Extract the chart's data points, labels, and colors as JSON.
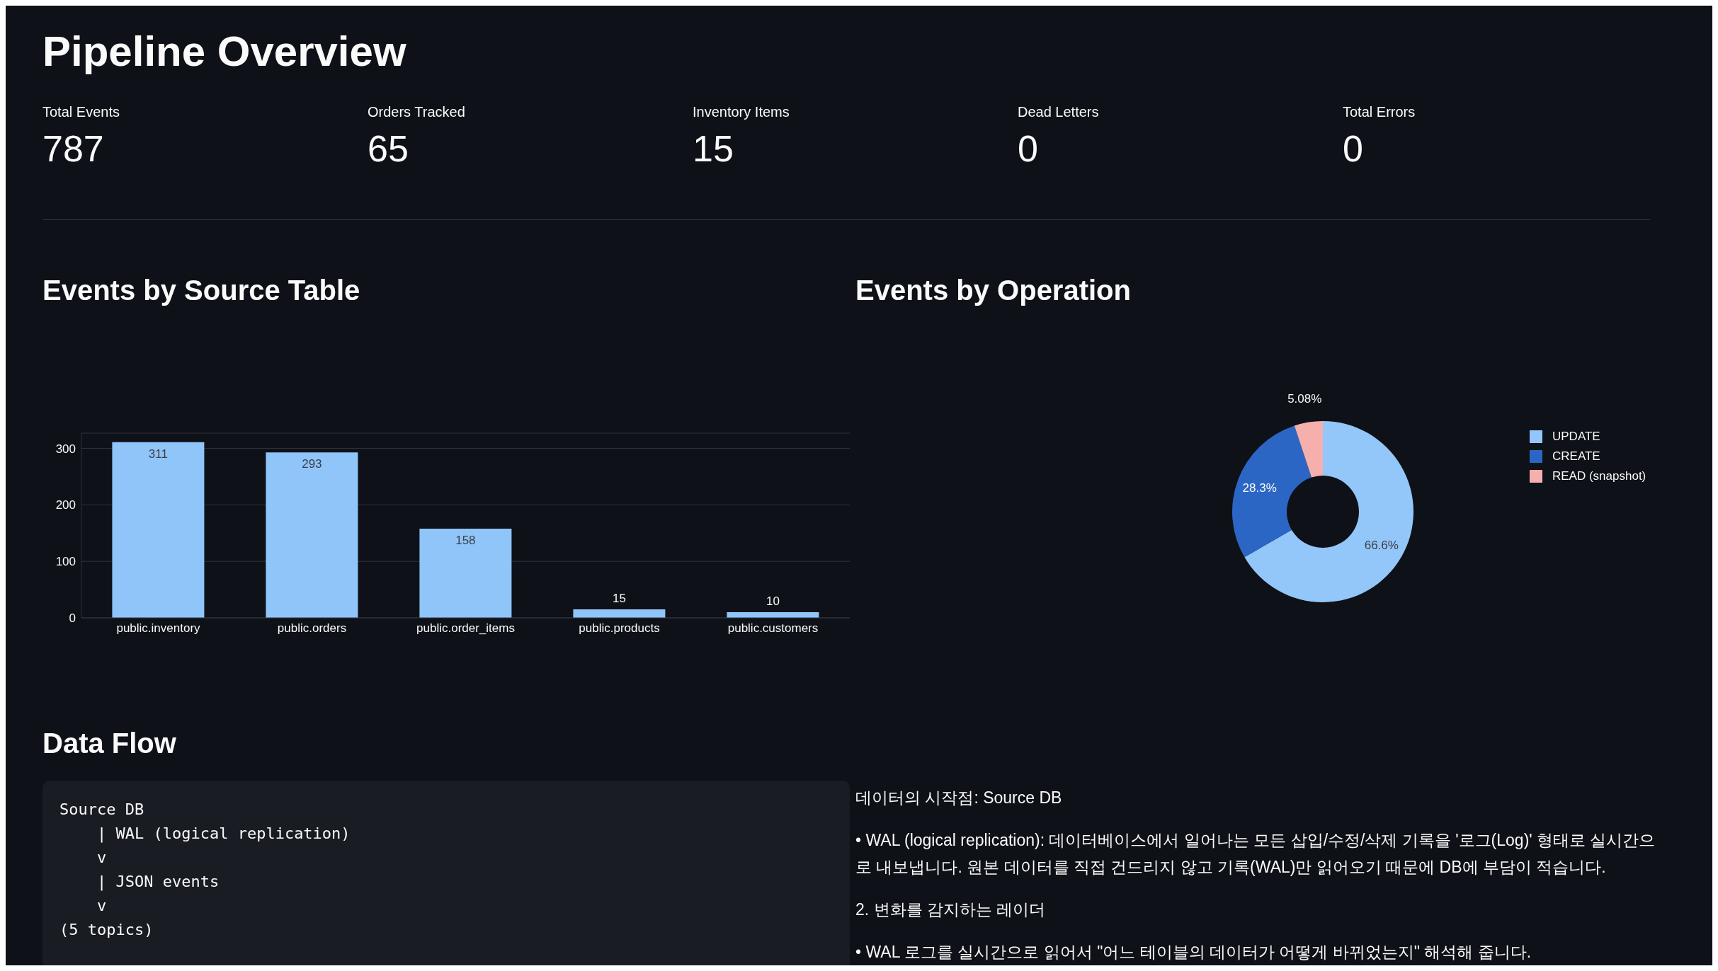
{
  "chart_data": [
    {
      "type": "other",
      "title": "Pipeline Overview",
      "annotations": [
        "Total Events",
        "787",
        "Orders Tracked",
        "65",
        "Inventory Items",
        "15",
        "Dead Letters",
        "0",
        "Total Errors",
        "0"
      ]
    },
    {
      "type": "bar",
      "title": "Events by Source Table",
      "categories": [
        "public.inventory",
        "public.orders",
        "public.order_items",
        "public.products",
        "public.customers"
      ],
      "values": [
        311,
        293,
        158,
        15,
        10
      ],
      "color": "#90c5f9",
      "ylim": [
        0,
        327
      ],
      "yticks": [
        0,
        100,
        200,
        300
      ],
      "grid": "y",
      "data_labels": true
    },
    {
      "type": "donut",
      "title": "Events by Operation",
      "categories": [
        "UPDATE",
        "CREATE",
        "READ (snapshot)"
      ],
      "values": [
        66.6,
        28.3,
        5.08
      ],
      "colors": [
        "#93c6f9",
        "#2c66c5",
        "#f5b0ae"
      ],
      "value_labels": [
        "66.6%",
        "28.3%",
        "5.08%"
      ],
      "legend": "right"
    },
    {
      "type": "other",
      "title": "Data Flow",
      "annotations": [
        "Source DB",
        "    | WAL (logical replication)",
        "    v",
        "    | JSON events",
        "    v",
        "(5 topics)"
      ]
    },
    {
      "type": "other",
      "annotations": [
        "데이터의 시작점: Source DB",
        "• WAL (logical replication): 데이터베이스에서 일어나는 모든 삽입/수정/삭제 기록을 '로그(Log)' 형태로 실시간으로 내보냅니다. 원본 데이터를 직접 건드리지 않고 기록(WAL)만 읽어오기 때문에 DB에 부담이 적습니다.",
        "2. 변화를 감지하는 레이더",
        "• WAL 로그를 실시간으로 읽어서 \"어느 테이블의 데이터가 어떻게 바뀌었는지\" 해석해 줍니다."
      ]
    }
  ]
}
